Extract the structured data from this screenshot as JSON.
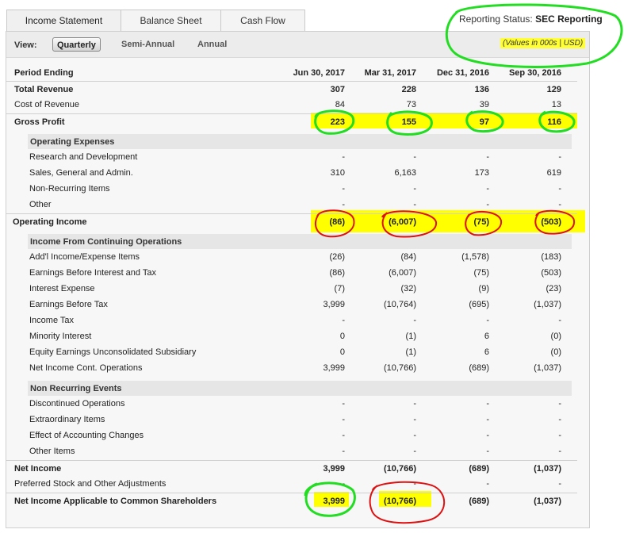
{
  "tabs": [
    {
      "label": "Income Statement",
      "active": true
    },
    {
      "label": "Balance Sheet",
      "active": false
    },
    {
      "label": "Cash Flow",
      "active": false
    }
  ],
  "reporting_status": {
    "label": "Reporting Status:",
    "value": "SEC Reporting"
  },
  "units_note": "(Values in 000s | USD)",
  "view": {
    "label": "View:",
    "options": [
      {
        "label": "Quarterly",
        "active": true
      },
      {
        "label": "Semi-Annual",
        "active": false
      },
      {
        "label": "Annual",
        "active": false
      }
    ]
  },
  "table": {
    "header_label": "Period Ending",
    "periods": [
      "Jun 30, 2017",
      "Mar 31, 2017",
      "Dec 31, 2016",
      "Sep 30, 2016"
    ],
    "rows": [
      {
        "label": "Total Revenue",
        "values": [
          "307",
          "228",
          "136",
          "129"
        ],
        "style": "bold"
      },
      {
        "label": "Cost of Revenue",
        "values": [
          "84",
          "73",
          "39",
          "13"
        ],
        "style": "normal"
      },
      {
        "label": "Gross Profit",
        "values": [
          "223",
          "155",
          "97",
          "116"
        ],
        "style": "bold"
      },
      {
        "label": "Operating Expenses",
        "style": "section"
      },
      {
        "label": "Research and Development",
        "values": [
          "-",
          "-",
          "-",
          "-"
        ],
        "style": "indent"
      },
      {
        "label": "Sales, General and Admin.",
        "values": [
          "310",
          "6,163",
          "173",
          "619"
        ],
        "style": "indent"
      },
      {
        "label": "Non-Recurring Items",
        "values": [
          "-",
          "-",
          "-",
          "-"
        ],
        "style": "indent"
      },
      {
        "label": "Other",
        "values": [
          "-",
          "-",
          "-",
          "-"
        ],
        "style": "indent"
      },
      {
        "label": "Operating Income",
        "values": [
          "(86)",
          "(6,007)",
          "(75)",
          "(503)"
        ],
        "style": "bold"
      },
      {
        "label": "Income From Continuing Operations",
        "style": "section"
      },
      {
        "label": "Add'l Income/Expense Items",
        "values": [
          "(26)",
          "(84)",
          "(1,578)",
          "(183)"
        ],
        "style": "indent"
      },
      {
        "label": "Earnings Before Interest and Tax",
        "values": [
          "(86)",
          "(6,007)",
          "(75)",
          "(503)"
        ],
        "style": "indent"
      },
      {
        "label": "Interest Expense",
        "values": [
          "(7)",
          "(32)",
          "(9)",
          "(23)"
        ],
        "style": "indent"
      },
      {
        "label": "Earnings Before Tax",
        "values": [
          "3,999",
          "(10,764)",
          "(695)",
          "(1,037)"
        ],
        "style": "indent"
      },
      {
        "label": "Income Tax",
        "values": [
          "-",
          "-",
          "-",
          "-"
        ],
        "style": "indent"
      },
      {
        "label": "Minority Interest",
        "values": [
          "0",
          "(1)",
          "6",
          "(0)"
        ],
        "style": "indent"
      },
      {
        "label": "Equity Earnings Unconsolidated Subsidiary",
        "values": [
          "0",
          "(1)",
          "6",
          "(0)"
        ],
        "style": "indent"
      },
      {
        "label": "Net Income Cont. Operations",
        "values": [
          "3,999",
          "(10,766)",
          "(689)",
          "(1,037)"
        ],
        "style": "indent"
      },
      {
        "label": "Non Recurring Events",
        "style": "section"
      },
      {
        "label": "Discontinued Operations",
        "values": [
          "-",
          "-",
          "-",
          "-"
        ],
        "style": "indent"
      },
      {
        "label": "Extraordinary Items",
        "values": [
          "-",
          "-",
          "-",
          "-"
        ],
        "style": "indent"
      },
      {
        "label": "Effect of Accounting Changes",
        "values": [
          "-",
          "-",
          "-",
          "-"
        ],
        "style": "indent"
      },
      {
        "label": "Other Items",
        "values": [
          "-",
          "-",
          "-",
          "-"
        ],
        "style": "indent"
      },
      {
        "label": "Net Income",
        "values": [
          "3,999",
          "(10,766)",
          "(689)",
          "(1,037)"
        ],
        "style": "bold"
      },
      {
        "label": "Preferred Stock and Other Adjustments",
        "values": [
          "-",
          "-",
          "-",
          "-"
        ],
        "style": "normal"
      },
      {
        "label": "Net Income Applicable to Common Shareholders",
        "values": [
          "3,999",
          "(10,766)",
          "(689)",
          "(1,037)"
        ],
        "style": "bold"
      }
    ]
  },
  "highlight_color": "#ffff00",
  "annotation_colors": {
    "green": "#22dd22",
    "red": "#dd1111"
  }
}
